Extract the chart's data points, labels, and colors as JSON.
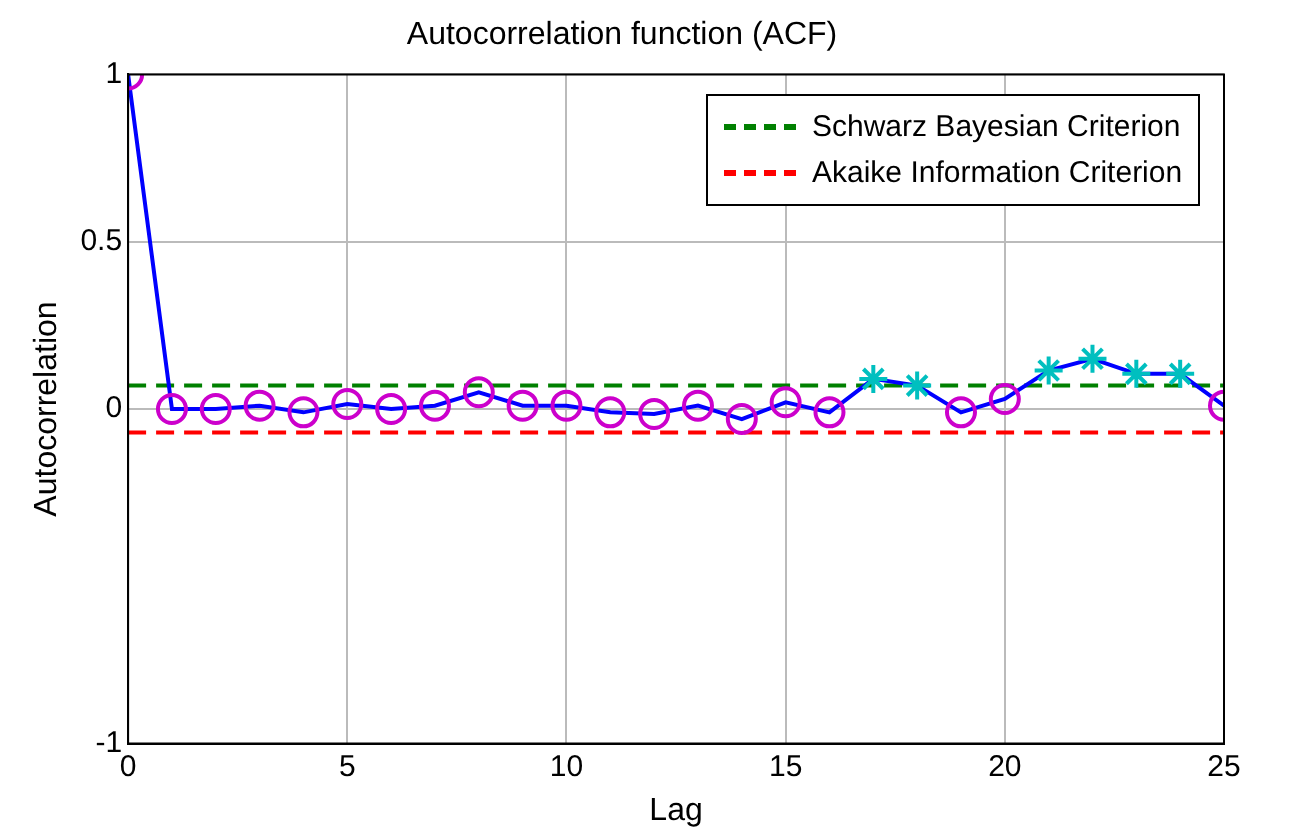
{
  "chart_data": {
    "type": "line",
    "title": "Autocorrelation function (ACF)",
    "xlabel": "Lag",
    "ylabel": "Autocorrelation",
    "x": [
      0,
      1,
      2,
      3,
      4,
      5,
      6,
      7,
      8,
      9,
      10,
      11,
      12,
      13,
      14,
      15,
      16,
      17,
      18,
      19,
      20,
      21,
      22,
      23,
      24,
      25
    ],
    "series": [
      {
        "color": "#0000ff",
        "marker": "none",
        "values": [
          1,
          0,
          0,
          0.01,
          -0.01,
          0.015,
          0,
          0.01,
          0.05,
          0.01,
          0.01,
          -0.01,
          -0.015,
          0.01,
          -0.03,
          0.02,
          -0.01,
          0.09,
          0.07,
          -0.01,
          0.03,
          0.115,
          0.15,
          0.105,
          0.105,
          0.01
        ]
      },
      {
        "type": "scatter",
        "color": "#cc00cc",
        "marker": "circle",
        "values": [
          1,
          0,
          0,
          0.01,
          -0.01,
          0.015,
          0,
          0.01,
          0.05,
          0.01,
          0.01,
          -0.01,
          -0.015,
          0.01,
          -0.03,
          0.02,
          -0.01,
          null,
          null,
          -0.01,
          0.03,
          null,
          null,
          null,
          null,
          0.01
        ]
      },
      {
        "type": "scatter",
        "color": "#00bfbf",
        "marker": "cross",
        "values": [
          null,
          null,
          null,
          null,
          null,
          null,
          null,
          null,
          null,
          null,
          null,
          null,
          null,
          null,
          null,
          null,
          null,
          0.09,
          0.07,
          null,
          null,
          0.115,
          0.15,
          0.105,
          0.105,
          null
        ]
      }
    ],
    "ref_lines": [
      {
        "axis": "y",
        "value": 0.07,
        "label": "Schwarz Bayesian Criterion",
        "color": "#008000",
        "line_style": "dashed"
      },
      {
        "axis": "y",
        "value": -0.07,
        "label": "Akaike Information Criterion",
        "color": "#ff0000",
        "line_style": "dashed"
      }
    ],
    "xlim": [
      0,
      25
    ],
    "xticks": [
      0,
      5,
      10,
      15,
      20,
      25
    ],
    "ylim": [
      -1,
      1
    ],
    "yticks": [
      -1,
      0,
      0.5,
      1
    ],
    "grid": true,
    "legend": "top right"
  }
}
